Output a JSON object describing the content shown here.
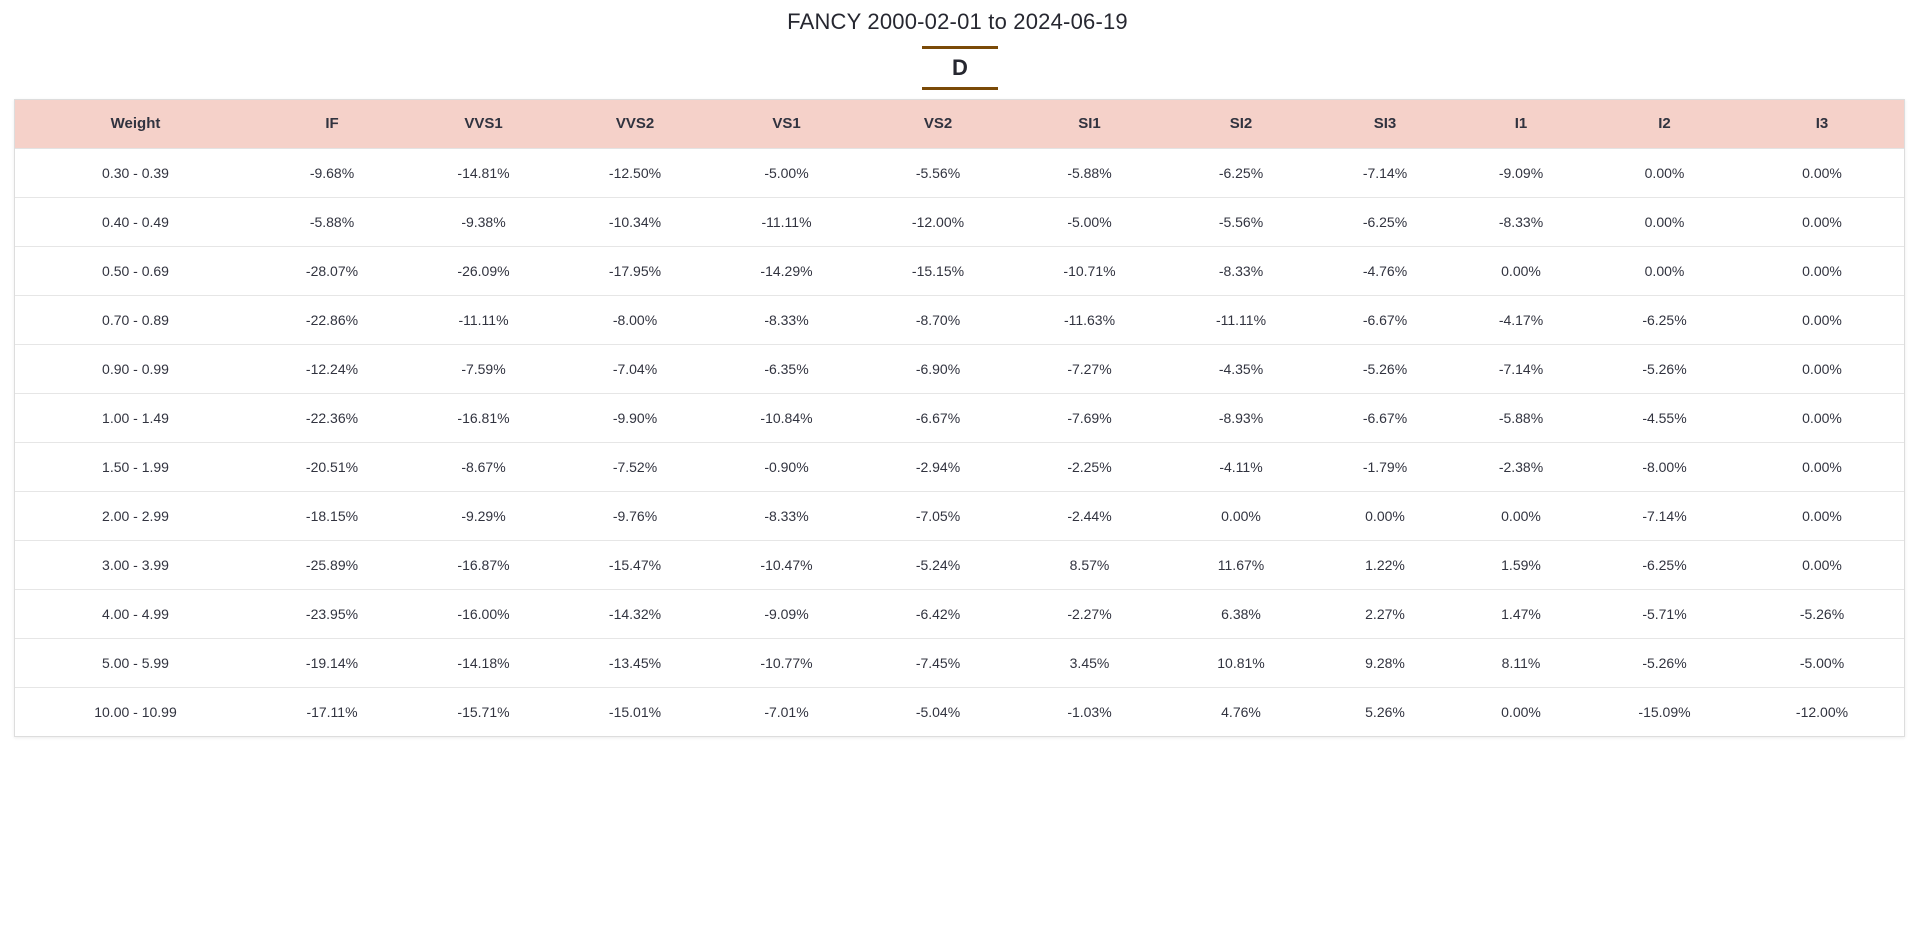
{
  "title": "FANCY 2000-02-01 to 2024-06-19",
  "tab": "D",
  "table": {
    "columns": [
      "Weight",
      "IF",
      "VVS1",
      "VVS2",
      "VS1",
      "VS2",
      "SI1",
      "SI2",
      "SI3",
      "I1",
      "I2",
      "I3"
    ],
    "rows": [
      [
        "0.30 - 0.39",
        "-9.68%",
        "-14.81%",
        "-12.50%",
        "-5.00%",
        "-5.56%",
        "-5.88%",
        "-6.25%",
        "-7.14%",
        "-9.09%",
        "0.00%",
        "0.00%"
      ],
      [
        "0.40 - 0.49",
        "-5.88%",
        "-9.38%",
        "-10.34%",
        "-11.11%",
        "-12.00%",
        "-5.00%",
        "-5.56%",
        "-6.25%",
        "-8.33%",
        "0.00%",
        "0.00%"
      ],
      [
        "0.50 - 0.69",
        "-28.07%",
        "-26.09%",
        "-17.95%",
        "-14.29%",
        "-15.15%",
        "-10.71%",
        "-8.33%",
        "-4.76%",
        "0.00%",
        "0.00%",
        "0.00%"
      ],
      [
        "0.70 - 0.89",
        "-22.86%",
        "-11.11%",
        "-8.00%",
        "-8.33%",
        "-8.70%",
        "-11.63%",
        "-11.11%",
        "-6.67%",
        "-4.17%",
        "-6.25%",
        "0.00%"
      ],
      [
        "0.90 - 0.99",
        "-12.24%",
        "-7.59%",
        "-7.04%",
        "-6.35%",
        "-6.90%",
        "-7.27%",
        "-4.35%",
        "-5.26%",
        "-7.14%",
        "-5.26%",
        "0.00%"
      ],
      [
        "1.00 - 1.49",
        "-22.36%",
        "-16.81%",
        "-9.90%",
        "-10.84%",
        "-6.67%",
        "-7.69%",
        "-8.93%",
        "-6.67%",
        "-5.88%",
        "-4.55%",
        "0.00%"
      ],
      [
        "1.50 - 1.99",
        "-20.51%",
        "-8.67%",
        "-7.52%",
        "-0.90%",
        "-2.94%",
        "-2.25%",
        "-4.11%",
        "-1.79%",
        "-2.38%",
        "-8.00%",
        "0.00%"
      ],
      [
        "2.00 - 2.99",
        "-18.15%",
        "-9.29%",
        "-9.76%",
        "-8.33%",
        "-7.05%",
        "-2.44%",
        "0.00%",
        "0.00%",
        "0.00%",
        "-7.14%",
        "0.00%"
      ],
      [
        "3.00 - 3.99",
        "-25.89%",
        "-16.87%",
        "-15.47%",
        "-10.47%",
        "-5.24%",
        "8.57%",
        "11.67%",
        "1.22%",
        "1.59%",
        "-6.25%",
        "0.00%"
      ],
      [
        "4.00 - 4.99",
        "-23.95%",
        "-16.00%",
        "-14.32%",
        "-9.09%",
        "-6.42%",
        "-2.27%",
        "6.38%",
        "2.27%",
        "1.47%",
        "-5.71%",
        "-5.26%"
      ],
      [
        "5.00 - 5.99",
        "-19.14%",
        "-14.18%",
        "-13.45%",
        "-10.77%",
        "-7.45%",
        "3.45%",
        "10.81%",
        "9.28%",
        "8.11%",
        "-5.26%",
        "-5.00%"
      ],
      [
        "10.00 - 10.99",
        "-17.11%",
        "-15.71%",
        "-15.01%",
        "-7.01%",
        "-5.04%",
        "-1.03%",
        "4.76%",
        "5.26%",
        "0.00%",
        "-15.09%",
        "-12.00%"
      ]
    ]
  },
  "colors": {
    "header_bg": "#f5d1c9",
    "tab_underline": "#7a4a07"
  }
}
